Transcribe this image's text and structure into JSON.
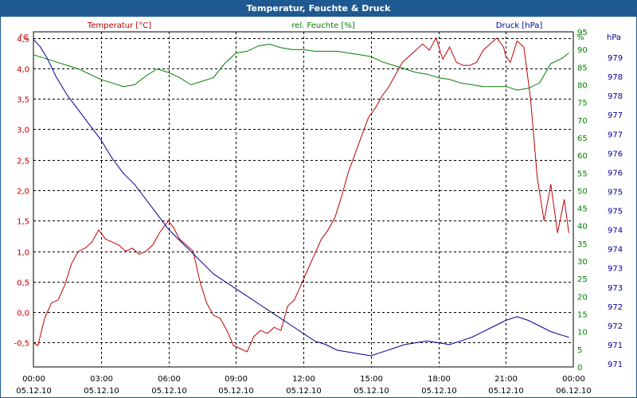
{
  "chart_data": {
    "type": "line",
    "title": "Temperatur, Feuchte & Druck",
    "x_ticks": [
      {
        "time": "00:00",
        "date": "05.12.10"
      },
      {
        "time": "03:00",
        "date": "05.12.10"
      },
      {
        "time": "06:00",
        "date": "05.12.10"
      },
      {
        "time": "09:00",
        "date": "05.12.10"
      },
      {
        "time": "12:00",
        "date": "05.12.10"
      },
      {
        "time": "15:00",
        "date": "05.12.10"
      },
      {
        "time": "18:00",
        "date": "05.12.10"
      },
      {
        "time": "21:00",
        "date": "05.12.10"
      },
      {
        "time": "00:00",
        "date": "06.12.10"
      }
    ],
    "x_range_hours": [
      0,
      24
    ],
    "grid": true,
    "axes": {
      "temperature": {
        "unit": "°C",
        "label": "Temperatur [°C]",
        "color": "#c00000",
        "ylim": [
          -0.9,
          4.6
        ],
        "ticks": [
          "-0,5",
          "0,0",
          "0,5",
          "1,0",
          "1,5",
          "2,0",
          "2,5",
          "3,0",
          "3,5",
          "4,0",
          "4,5"
        ],
        "tick_values": [
          -0.5,
          0,
          0.5,
          1,
          1.5,
          2,
          2.5,
          3,
          3.5,
          4,
          4.5
        ]
      },
      "humidity": {
        "unit": "%",
        "label": "rel. Feuchte [%]",
        "color": "#008000",
        "ylim": [
          0,
          95
        ],
        "ticks": [
          "0",
          "5",
          "10",
          "15",
          "20",
          "25",
          "30",
          "35",
          "40",
          "45",
          "50",
          "55",
          "60",
          "65",
          "70",
          "75",
          "80",
          "85",
          "90",
          "95"
        ],
        "tick_values": [
          0,
          5,
          10,
          15,
          20,
          25,
          30,
          35,
          40,
          45,
          50,
          55,
          60,
          65,
          70,
          75,
          80,
          85,
          90,
          95
        ]
      },
      "pressure": {
        "unit": "hPa",
        "label": "Druck [hPa]",
        "color": "#000090",
        "ylim": [
          970.6,
          979.6
        ],
        "ticks": [
          "979",
          "978",
          "978",
          "977",
          "977",
          "976",
          "976",
          "975",
          "975",
          "974",
          "974",
          "973",
          "973",
          "972",
          "972",
          "971",
          "971"
        ],
        "tick_values": [
          979.0,
          978.3,
          977.8,
          977.2,
          976.7,
          976.1,
          975.6,
          975.0,
          974.5,
          973.9,
          973.4,
          972.8,
          972.3,
          971.7,
          971.2,
          970.6,
          970.1
        ]
      }
    },
    "series": [
      {
        "name": "Temperatur [°C]",
        "axis": "temperature",
        "color": "#c00000",
        "x": [
          0,
          0.2,
          0.5,
          0.8,
          1.1,
          1.4,
          1.7,
          2.0,
          2.3,
          2.6,
          2.9,
          3.0,
          3.2,
          3.5,
          3.8,
          4.1,
          4.4,
          4.7,
          5.0,
          5.3,
          5.6,
          5.9,
          6.0,
          6.2,
          6.5,
          6.8,
          7.1,
          7.4,
          7.7,
          8.0,
          8.3,
          8.6,
          8.9,
          9.2,
          9.5,
          9.8,
          10.1,
          10.4,
          10.7,
          11.0,
          11.3,
          11.6,
          11.9,
          12.2,
          12.5,
          12.8,
          13.1,
          13.4,
          13.7,
          14.0,
          14.3,
          14.6,
          14.9,
          15.2,
          15.5,
          15.8,
          16.1,
          16.4,
          16.7,
          17.0,
          17.3,
          17.6,
          17.9,
          18.2,
          18.5,
          18.8,
          19.1,
          19.4,
          19.7,
          20.0,
          20.3,
          20.6,
          20.9,
          21.0,
          21.2,
          21.5,
          21.8,
          22.1,
          22.4,
          22.7,
          23.0,
          23.3,
          23.6,
          23.8
        ],
        "values": [
          -0.5,
          -0.55,
          -0.1,
          0.15,
          0.2,
          0.45,
          0.8,
          1.0,
          1.05,
          1.15,
          1.35,
          1.3,
          1.2,
          1.15,
          1.1,
          1.0,
          1.05,
          0.95,
          1.0,
          1.1,
          1.3,
          1.45,
          1.5,
          1.4,
          1.2,
          1.1,
          1.0,
          0.5,
          0.15,
          -0.05,
          -0.1,
          -0.3,
          -0.55,
          -0.6,
          -0.65,
          -0.4,
          -0.3,
          -0.35,
          -0.25,
          -0.3,
          0.1,
          0.2,
          0.45,
          0.7,
          0.95,
          1.2,
          1.35,
          1.55,
          1.9,
          2.3,
          2.6,
          2.9,
          3.2,
          3.35,
          3.55,
          3.7,
          3.9,
          4.1,
          4.2,
          4.3,
          4.4,
          4.3,
          4.5,
          4.15,
          4.35,
          4.1,
          4.05,
          4.05,
          4.1,
          4.3,
          4.4,
          4.5,
          4.35,
          4.2,
          4.1,
          4.45,
          4.35,
          3.5,
          2.2,
          1.5,
          2.1,
          1.3,
          1.85,
          1.3
        ]
      },
      {
        "name": "rel. Feuchte [%]",
        "axis": "humidity",
        "color": "#008000",
        "x": [
          0,
          0.5,
          1.0,
          1.5,
          2.0,
          2.5,
          3.0,
          3.5,
          4.0,
          4.5,
          5.0,
          5.5,
          6.0,
          6.5,
          7.0,
          7.5,
          8.0,
          8.5,
          9.0,
          9.5,
          10.0,
          10.5,
          11.0,
          11.5,
          12.0,
          12.5,
          13.0,
          13.5,
          14.0,
          14.5,
          15.0,
          15.5,
          16.0,
          16.5,
          17.0,
          17.5,
          18.0,
          18.5,
          19.0,
          19.5,
          20.0,
          20.5,
          21.0,
          21.5,
          22.0,
          22.5,
          23.0,
          23.5,
          23.8
        ],
        "values": [
          88.5,
          87.5,
          86.5,
          85.5,
          84.5,
          83,
          81.5,
          80.5,
          79.5,
          80,
          82.5,
          84.5,
          83.5,
          82,
          80,
          81,
          82,
          86,
          89,
          89.5,
          91,
          91.5,
          90.5,
          90,
          90,
          89.5,
          89.5,
          89.5,
          89,
          88.5,
          88,
          86.5,
          85.5,
          84.5,
          83.5,
          83,
          82,
          81.5,
          80.5,
          80,
          79.5,
          79.5,
          79.5,
          78.5,
          79,
          80.5,
          86,
          87.5,
          89
        ]
      },
      {
        "name": "Druck [hPa]",
        "axis": "pressure",
        "color": "#000090",
        "x": [
          0,
          0.3,
          0.6,
          1.0,
          1.5,
          2.0,
          2.5,
          3.0,
          3.5,
          4.0,
          4.5,
          5.0,
          5.5,
          6.0,
          6.5,
          7.0,
          7.5,
          8.0,
          8.5,
          9.0,
          9.5,
          10.0,
          10.5,
          11.0,
          11.5,
          12.0,
          12.5,
          13.0,
          13.5,
          14.0,
          14.5,
          15.0,
          15.5,
          16.0,
          16.5,
          17.0,
          17.5,
          18.0,
          18.5,
          19.0,
          19.5,
          20.0,
          20.5,
          21.0,
          21.5,
          22.0,
          22.5,
          23.0,
          23.5,
          23.8
        ],
        "values": [
          979.4,
          979.2,
          978.9,
          978.4,
          977.9,
          977.5,
          977.1,
          976.7,
          976.2,
          975.8,
          975.5,
          975.1,
          974.7,
          974.3,
          974.0,
          973.7,
          973.4,
          973.1,
          972.9,
          972.7,
          972.5,
          972.3,
          972.1,
          971.9,
          971.7,
          971.5,
          971.3,
          971.2,
          971.05,
          971.0,
          970.95,
          970.9,
          971.0,
          971.1,
          971.2,
          971.25,
          971.3,
          971.25,
          971.2,
          971.3,
          971.4,
          971.55,
          971.7,
          971.85,
          971.95,
          971.85,
          971.7,
          971.55,
          971.45,
          971.4
        ]
      }
    ]
  }
}
